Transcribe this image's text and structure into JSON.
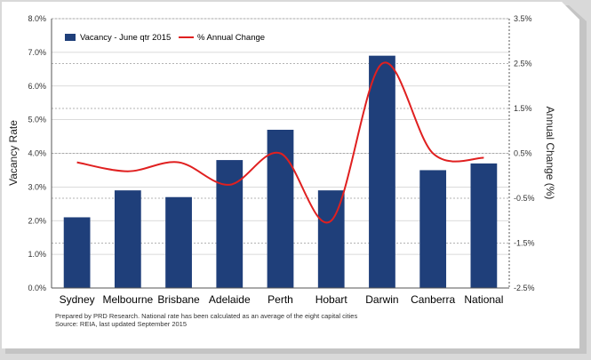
{
  "chart_data": {
    "type": "bar",
    "categories": [
      "Sydney",
      "Melbourne",
      "Brisbane",
      "Adelaide",
      "Perth",
      "Hobart",
      "Darwin",
      "Canberra",
      "National"
    ],
    "series": [
      {
        "name": "Vacancy - June qtr 2015",
        "type": "bar",
        "axis": "left",
        "color": "#1f3f7a",
        "values": [
          2.1,
          2.9,
          2.7,
          3.8,
          4.7,
          2.9,
          6.9,
          3.5,
          3.7
        ]
      },
      {
        "name": "% Annual Change",
        "type": "line",
        "axis": "right",
        "color": "#e02020",
        "values": [
          0.3,
          0.1,
          0.3,
          -0.2,
          0.5,
          -1.0,
          2.5,
          0.5,
          0.4
        ]
      }
    ],
    "ylabel": "Vacancy Rate",
    "ylabel_right": "Annual Change (%)",
    "ylim": [
      0,
      8
    ],
    "ylim_right": [
      -2.5,
      3.5
    ],
    "yticks": [
      "0.0%",
      "1.0%",
      "2.0%",
      "3.0%",
      "4.0%",
      "5.0%",
      "6.0%",
      "7.0%",
      "8.0%"
    ],
    "yticks_right": [
      "-2.5%",
      "-1.5%",
      "-0.5%",
      "0.5%",
      "1.5%",
      "2.5%",
      "3.5%"
    ],
    "legend": "top-left",
    "grid": true,
    "notes": [
      "Prepared by PRD Research. National rate has been calculated as an average  of the eight capital cities",
      "Source: REIA, last updated September 2015"
    ]
  }
}
